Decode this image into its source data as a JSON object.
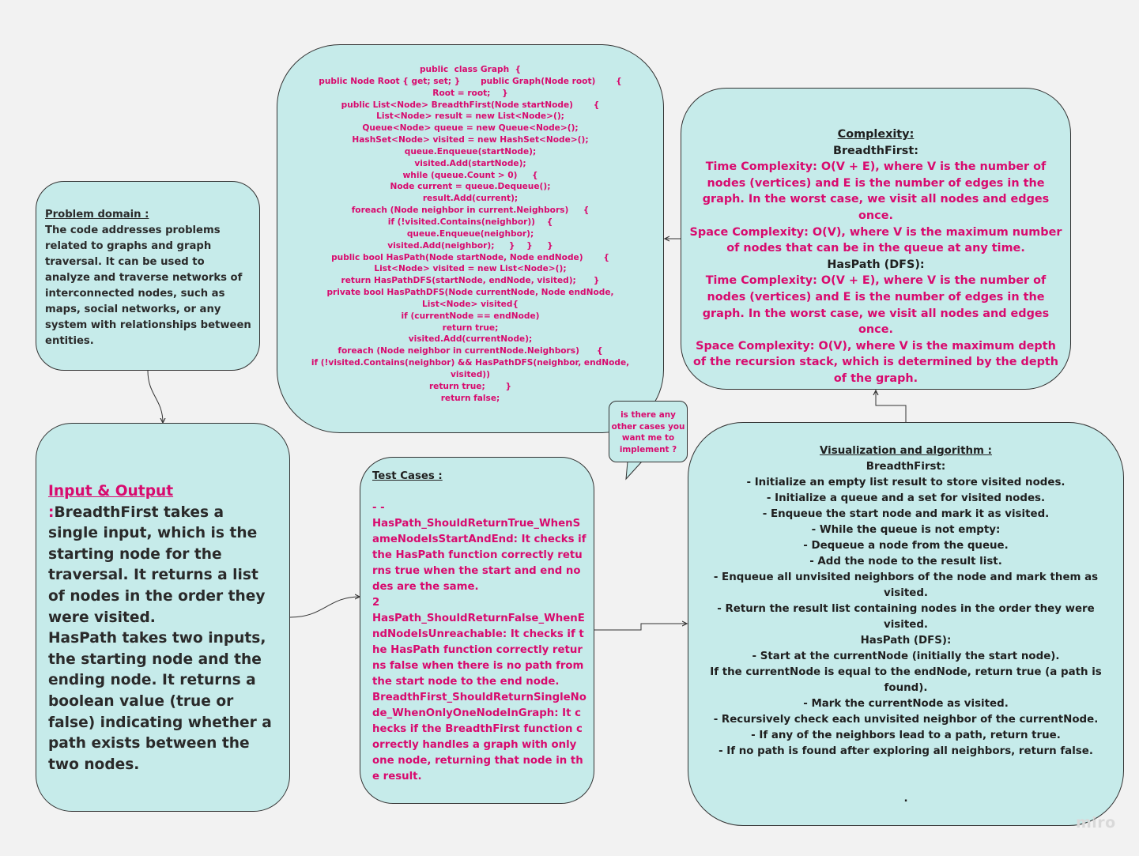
{
  "problem": {
    "heading": "Problem domain :",
    "body": "The code addresses problems related to graphs and graph traversal. It can be used to analyze and traverse networks of interconnected nodes, such as maps, social networks, or any system with relationships between entities."
  },
  "io": {
    "first_letter": "I",
    "heading_rest": "nput & Output ",
    "colon": ":",
    "body": "BreadthFirst takes a single input, which is the starting node for the traversal. It returns a list of nodes in the order they were visited.\nHasPath takes two inputs, the starting node and the ending node. It returns a boolean value (true or false) indicating whether a path exists between the two nodes."
  },
  "code": {
    "lines": [
      "public  class Graph  {",
      "public Node Root { get; set; }       public Graph(Node root)       {",
      "Root = root;    }",
      "public List<Node> BreadthFirst(Node startNode)       {",
      "List<Node> result = new List<Node>();",
      "Queue<Node> queue = new Queue<Node>();",
      "HashSet<Node> visited = new HashSet<Node>();",
      "queue.Enqueue(startNode);",
      "visited.Add(startNode);",
      "while (queue.Count > 0)     {",
      "Node current = queue.Dequeue();",
      "result.Add(current);",
      "foreach (Node neighbor in current.Neighbors)     {",
      "if (!visited.Contains(neighbor))    {",
      "queue.Enqueue(neighbor);",
      "visited.Add(neighbor);     }    }     }",
      "public bool HasPath(Node startNode, Node endNode)       {",
      "List<Node> visited = new List<Node>();",
      "return HasPathDFS(startNode, endNode, visited);      }",
      "private bool HasPathDFS(Node currentNode, Node endNode,",
      "List<Node> visited{",
      "if (currentNode == endNode)",
      "return true;",
      "visited.Add(currentNode);",
      "foreach (Node neighbor in currentNode.Neighbors)      {",
      "if (!visited.Contains(neighbor) && HasPathDFS(neighbor, endNode,",
      "visited))",
      "return true;       }",
      "return false;"
    ]
  },
  "complexity": {
    "heading": "Complexity:",
    "bfs_label": "BreadthFirst:",
    "bfs_time": "Time Complexity: O(V + E), where V is the number of nodes (vertices) and E is the number of edges in the graph. In the worst case, we visit all nodes and edges once.",
    "bfs_space": "Space Complexity: O(V), where V is the maximum number of nodes that can be in the queue at any time.",
    "dfs_label": "HasPath (DFS):",
    "dfs_time": "Time Complexity: O(V + E), where V is the number of nodes (vertices) and E is the number of edges in the graph. In the worst case, we visit all nodes and edges once.",
    "dfs_space": "Space Complexity: O(V), where V is the maximum depth of the recursion stack, which is determined by the depth of the graph."
  },
  "bubble": {
    "text": "is there any other cases you want me to implement ?"
  },
  "tests": {
    "title": "Test Cases :",
    "dashes": "- -",
    "case1": "HasPath_ShouldReturnTrue_WhenSameNodeIsStartAndEnd: It checks if the HasPath function correctly returns true when the start and end nodes are the same.",
    "num2": "2",
    "case2": "HasPath_ShouldReturnFalse_WhenEndNodeIsUnreachable: It checks if the HasPath function correctly returns false when there is no path from the start node to the end node.",
    "case3": "BreadthFirst_ShouldReturnSingleNode_WhenOnlyOneNodeInGraph: It checks if the BreadthFirst function correctly handles a graph with only one node, returning that node in the result."
  },
  "viz": {
    "heading": "Visualization and algorithm  :",
    "lines": [
      "BreadthFirst:",
      "- Initialize an empty list result to store visited nodes.",
      "- Initialize a queue and a set for visited nodes.",
      "- Enqueue the start node and mark it as visited.",
      "- While the queue is not empty:",
      "- Dequeue a node from the queue.",
      "- Add the node to the result list.",
      "- Enqueue all unvisited neighbors of the node and mark them as visited.",
      "- Return the result list containing nodes in the order they were visited.",
      "HasPath (DFS):",
      "- Start at the currentNode (initially the start node).",
      "If the currentNode is equal to the endNode, return true (a path is found).",
      "- Mark the currentNode as visited.",
      "- Recursively check each unvisited neighbor of the currentNode.",
      "- If any of the neighbors lead to a path, return true.",
      "- If no path is found after exploring all neighbors, return false."
    ],
    "trailing": "."
  },
  "watermark": "miro",
  "colors": {
    "card_fill": "#c6ebea",
    "accent_pink": "#d80a6e",
    "background": "#f2f2f2"
  }
}
